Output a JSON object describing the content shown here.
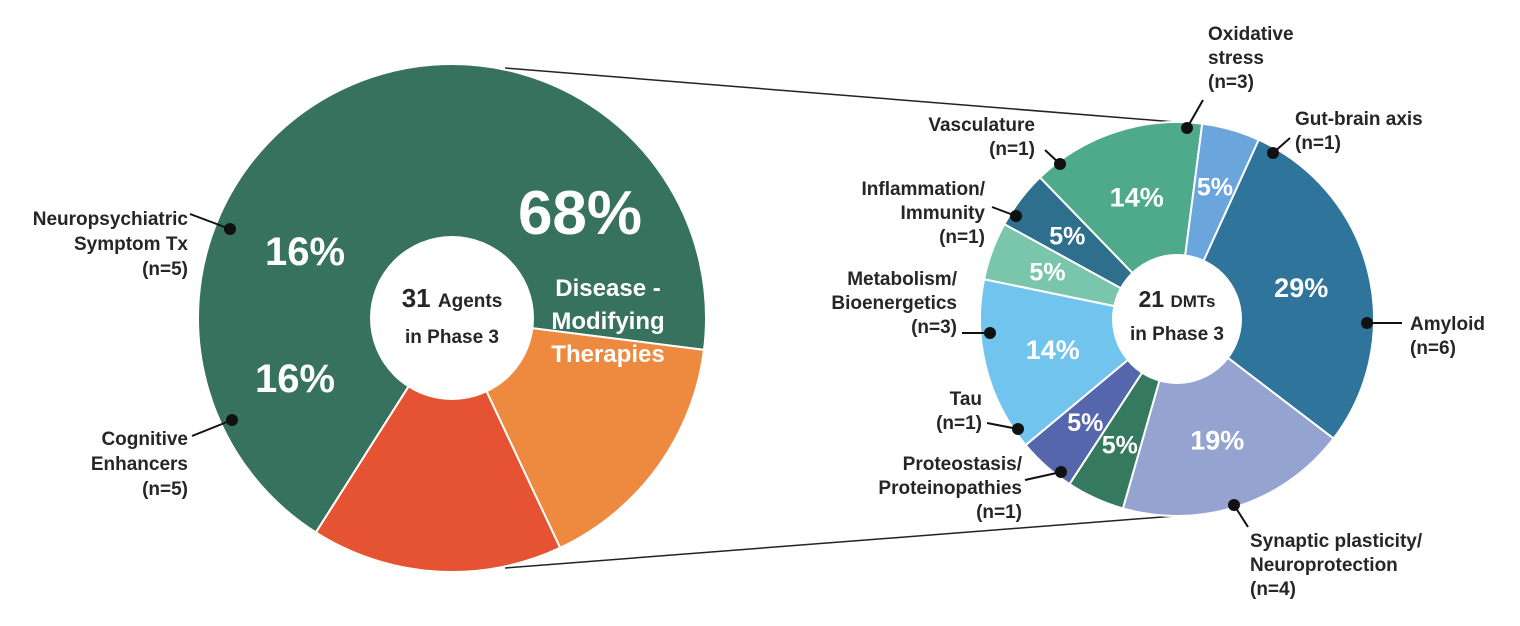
{
  "chart_data": [
    {
      "type": "pie",
      "center_text": {
        "number": "31",
        "word": "Agents",
        "line2": "in Phase 3"
      },
      "slices": [
        {
          "label": "Disease - Modifying Therapies",
          "pct_label": "68%",
          "value": 68,
          "color": "#37725e"
        },
        {
          "label": "Neuropsychiatric Symptom Tx",
          "n": "(n=5)",
          "pct_label": "16%",
          "value": 16,
          "color": "#ee8a3f"
        },
        {
          "label": "Cognitive Enhancers",
          "n": "(n=5)",
          "pct_label": "16%",
          "value": 16,
          "color": "#e65332"
        }
      ],
      "callout_labels": [
        {
          "lines": [
            "Neuropsychiatric",
            "Symptom Tx",
            "(n=5)"
          ]
        },
        {
          "lines": [
            "Cognitive",
            "Enhancers",
            "(n=5)"
          ]
        }
      ],
      "inner_label_lines": [
        "Disease -",
        "Modifying",
        "Therapies"
      ]
    },
    {
      "type": "pie",
      "center_text": {
        "number": "21",
        "word": "DMTs",
        "line2": "in Phase 3"
      },
      "slices": [
        {
          "label": "Amyloid",
          "n": "(n=6)",
          "pct_label": "29%",
          "value": 6,
          "color": "#2f749b"
        },
        {
          "label": "Synaptic plasticity/ Neuroprotection",
          "n": "(n=4)",
          "pct_label": "19%",
          "value": 4,
          "color": "#95a3d1"
        },
        {
          "label": "Proteostasis/ Proteinopathies",
          "n": "(n=1)",
          "pct_label": "5%",
          "value": 1,
          "color": "#357a5f"
        },
        {
          "label": "Tau",
          "n": "(n=1)",
          "pct_label": "5%",
          "value": 1,
          "color": "#5566ac"
        },
        {
          "label": "Metabolism/ Bioenergetics",
          "n": "(n=3)",
          "pct_label": "14%",
          "value": 3,
          "color": "#70c4ee"
        },
        {
          "label": "Inflammation/ Immunity",
          "n": "(n=1)",
          "pct_label": "5%",
          "value": 1,
          "color": "#79c6ac"
        },
        {
          "label": "Vasculature",
          "n": "(n=1)",
          "pct_label": "5%",
          "value": 1,
          "color": "#2e6f8d"
        },
        {
          "label": "Oxidative stress",
          "n": "(n=3)",
          "pct_label": "14%",
          "value": 3,
          "color": "#4fa98b"
        },
        {
          "label": "Gut-brain axis",
          "n": "(n=1)",
          "pct_label": "5%",
          "value": 1,
          "color": "#6aa5db"
        }
      ],
      "callout_labels": [
        {
          "lines": [
            "Amyloid",
            "(n=6)"
          ]
        },
        {
          "lines": [
            "Synaptic plasticity/",
            "Neuroprotection",
            "(n=4)"
          ]
        },
        {
          "lines": [
            "Proteostasis/",
            "Proteinopathies",
            "(n=1)"
          ]
        },
        {
          "lines": [
            "Tau",
            "(n=1)"
          ]
        },
        {
          "lines": [
            "Metabolism/",
            "Bioenergetics",
            "(n=3)"
          ]
        },
        {
          "lines": [
            "Inflammation/",
            "Immunity",
            "(n=1)"
          ]
        },
        {
          "lines": [
            "Vasculature",
            "(n=1)"
          ]
        },
        {
          "lines": [
            "Oxidative",
            "stress",
            "(n=3)"
          ]
        },
        {
          "lines": [
            "Gut-brain axis",
            "(n=1)"
          ]
        }
      ]
    }
  ]
}
